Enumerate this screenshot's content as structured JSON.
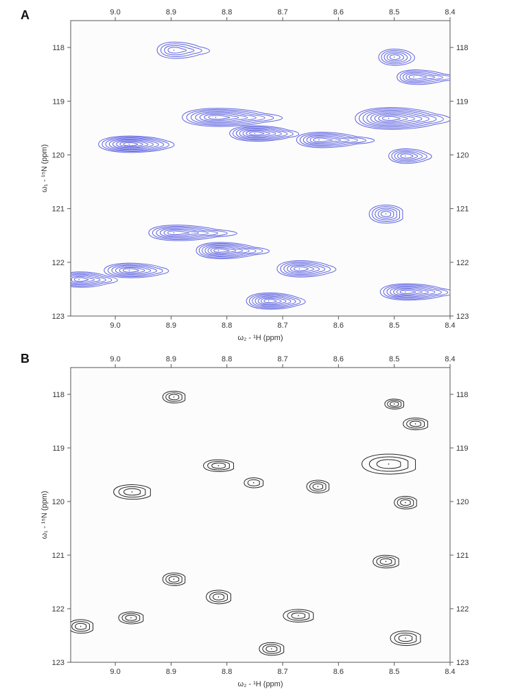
{
  "chart_data": [
    {
      "panel_label": "A",
      "type": "contour",
      "xlabel": "ω₂ - ¹H (ppm)",
      "ylabel": "ω₁ - ¹⁵N (ppm)",
      "xlim": [
        9.08,
        8.4
      ],
      "ylim": [
        117.5,
        123.0
      ],
      "x_reversed": true,
      "y_reversed": true,
      "x_ticks": [
        "9.0",
        "8.9",
        "8.8",
        "8.7",
        "8.6",
        "8.5",
        "8.4"
      ],
      "y_ticks": [
        "118",
        "119",
        "120",
        "121",
        "122",
        "123"
      ],
      "color": "#5a5fe0",
      "peaks": [
        {
          "x": 8.895,
          "y": 118.05,
          "rx": 0.03,
          "ry": 0.18,
          "levels": 4,
          "tail": 0.04
        },
        {
          "x": 8.5,
          "y": 118.18,
          "rx": 0.028,
          "ry": 0.18,
          "levels": 5,
          "tail": 0.01
        },
        {
          "x": 8.465,
          "y": 118.55,
          "rx": 0.03,
          "ry": 0.16,
          "levels": 5,
          "tail": 0.06
        },
        {
          "x": 8.82,
          "y": 119.3,
          "rx": 0.06,
          "ry": 0.2,
          "levels": 7,
          "tail": 0.07
        },
        {
          "x": 8.75,
          "y": 119.6,
          "rx": 0.045,
          "ry": 0.17,
          "levels": 7,
          "tail": 0.04
        },
        {
          "x": 8.635,
          "y": 119.72,
          "rx": 0.04,
          "ry": 0.17,
          "levels": 6,
          "tail": 0.07
        },
        {
          "x": 8.51,
          "y": 119.32,
          "rx": 0.06,
          "ry": 0.24,
          "levels": 8,
          "tail": 0.06
        },
        {
          "x": 8.975,
          "y": 119.8,
          "rx": 0.055,
          "ry": 0.18,
          "levels": 8,
          "tail": 0.03
        },
        {
          "x": 8.48,
          "y": 120.02,
          "rx": 0.03,
          "ry": 0.16,
          "levels": 5,
          "tail": 0.02
        },
        {
          "x": 8.515,
          "y": 121.1,
          "rx": 0.03,
          "ry": 0.2,
          "levels": 5,
          "tail": 0.0
        },
        {
          "x": 8.895,
          "y": 121.45,
          "rx": 0.045,
          "ry": 0.17,
          "levels": 6,
          "tail": 0.08
        },
        {
          "x": 8.815,
          "y": 121.78,
          "rx": 0.04,
          "ry": 0.18,
          "levels": 7,
          "tail": 0.06
        },
        {
          "x": 8.67,
          "y": 122.12,
          "rx": 0.04,
          "ry": 0.18,
          "levels": 6,
          "tail": 0.03
        },
        {
          "x": 8.975,
          "y": 122.15,
          "rx": 0.045,
          "ry": 0.16,
          "levels": 6,
          "tail": 0.03
        },
        {
          "x": 9.065,
          "y": 122.32,
          "rx": 0.035,
          "ry": 0.17,
          "levels": 6,
          "tail": 0.04
        },
        {
          "x": 8.725,
          "y": 122.72,
          "rx": 0.04,
          "ry": 0.18,
          "levels": 7,
          "tail": 0.03
        },
        {
          "x": 8.48,
          "y": 122.55,
          "rx": 0.045,
          "ry": 0.18,
          "levels": 7,
          "tail": 0.05
        }
      ]
    },
    {
      "panel_label": "B",
      "type": "contour",
      "xlabel": "ω₂ - ¹H (ppm)",
      "ylabel": "ω₁ - ¹⁵N (ppm)",
      "xlim": [
        9.08,
        8.4
      ],
      "ylim": [
        117.5,
        123.0
      ],
      "x_reversed": true,
      "y_reversed": true,
      "x_ticks": [
        "9.0",
        "8.9",
        "8.8",
        "8.7",
        "8.6",
        "8.5",
        "8.4"
      ],
      "y_ticks": [
        "118",
        "119",
        "120",
        "121",
        "122",
        "123"
      ],
      "color": "#222222",
      "peaks": [
        {
          "x": 8.895,
          "y": 118.05,
          "rx": 0.02,
          "ry": 0.13,
          "levels": 3,
          "tail": 0
        },
        {
          "x": 8.5,
          "y": 118.18,
          "rx": 0.017,
          "ry": 0.11,
          "levels": 3,
          "tail": 0
        },
        {
          "x": 8.462,
          "y": 118.55,
          "rx": 0.022,
          "ry": 0.13,
          "levels": 3,
          "tail": 0
        },
        {
          "x": 8.815,
          "y": 119.33,
          "rx": 0.027,
          "ry": 0.13,
          "levels": 3,
          "tail": 0
        },
        {
          "x": 8.752,
          "y": 119.65,
          "rx": 0.017,
          "ry": 0.11,
          "levels": 2,
          "tail": 0
        },
        {
          "x": 8.637,
          "y": 119.72,
          "rx": 0.02,
          "ry": 0.14,
          "levels": 3,
          "tail": 0
        },
        {
          "x": 8.51,
          "y": 119.3,
          "rx": 0.048,
          "ry": 0.22,
          "levels": 3,
          "tail": 0
        },
        {
          "x": 8.97,
          "y": 119.82,
          "rx": 0.033,
          "ry": 0.16,
          "levels": 3,
          "tail": 0
        },
        {
          "x": 8.48,
          "y": 120.02,
          "rx": 0.02,
          "ry": 0.14,
          "levels": 3,
          "tail": 0
        },
        {
          "x": 8.515,
          "y": 121.12,
          "rx": 0.023,
          "ry": 0.14,
          "levels": 3,
          "tail": 0
        },
        {
          "x": 8.895,
          "y": 121.45,
          "rx": 0.02,
          "ry": 0.14,
          "levels": 3,
          "tail": 0
        },
        {
          "x": 8.815,
          "y": 121.78,
          "rx": 0.022,
          "ry": 0.15,
          "levels": 3,
          "tail": 0
        },
        {
          "x": 8.672,
          "y": 122.13,
          "rx": 0.027,
          "ry": 0.14,
          "levels": 3,
          "tail": 0
        },
        {
          "x": 8.972,
          "y": 122.17,
          "rx": 0.022,
          "ry": 0.13,
          "levels": 3,
          "tail": 0
        },
        {
          "x": 9.062,
          "y": 122.33,
          "rx": 0.022,
          "ry": 0.15,
          "levels": 3,
          "tail": 0
        },
        {
          "x": 8.72,
          "y": 122.75,
          "rx": 0.022,
          "ry": 0.14,
          "levels": 3,
          "tail": 0
        },
        {
          "x": 8.48,
          "y": 122.55,
          "rx": 0.027,
          "ry": 0.16,
          "levels": 3,
          "tail": 0
        }
      ]
    }
  ]
}
